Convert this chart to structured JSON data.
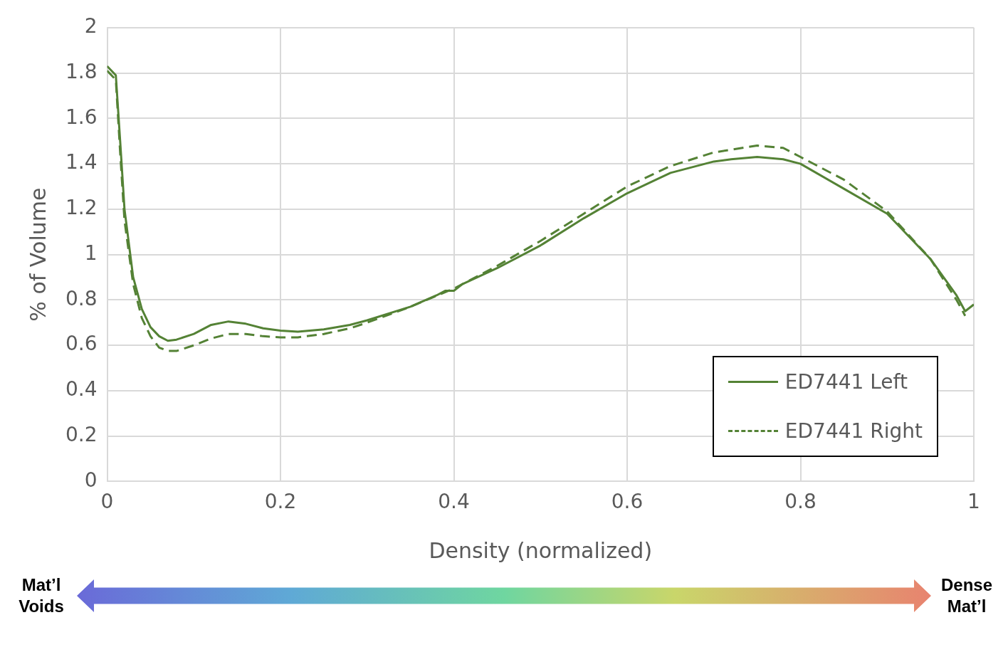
{
  "chart_data": {
    "type": "line",
    "xlabel": "Density (normalized)",
    "ylabel": "% of Volume",
    "xlim": [
      0,
      1
    ],
    "xticks": [
      0,
      0.2,
      0.4,
      0.6,
      0.8,
      1
    ],
    "ylim": [
      0,
      2
    ],
    "yticks": [
      0,
      0.2,
      0.4,
      0.6,
      0.8,
      1,
      1.2,
      1.4,
      1.6,
      1.8,
      2
    ],
    "grid": true,
    "legend": "bottom right",
    "marker": "none",
    "series": [
      {
        "name": "ED7441 Left",
        "color": "#548235",
        "line_style": "solid",
        "x": [
          0,
          0.01,
          0.015,
          0.02,
          0.03,
          0.04,
          0.05,
          0.06,
          0.07,
          0.08,
          0.1,
          0.12,
          0.14,
          0.16,
          0.18,
          0.2,
          0.22,
          0.25,
          0.28,
          0.3,
          0.35,
          0.38,
          0.39,
          0.4,
          0.41,
          0.45,
          0.5,
          0.55,
          0.6,
          0.65,
          0.7,
          0.72,
          0.75,
          0.78,
          0.8,
          0.85,
          0.9,
          0.95,
          0.98,
          0.99,
          1
        ],
        "values": [
          1.83,
          1.79,
          1.5,
          1.2,
          0.9,
          0.76,
          0.68,
          0.64,
          0.62,
          0.625,
          0.65,
          0.69,
          0.705,
          0.695,
          0.675,
          0.665,
          0.66,
          0.67,
          0.69,
          0.71,
          0.77,
          0.82,
          0.84,
          0.84,
          0.87,
          0.94,
          1.04,
          1.16,
          1.27,
          1.36,
          1.41,
          1.42,
          1.43,
          1.42,
          1.4,
          1.29,
          1.18,
          0.98,
          0.82,
          0.75,
          0.78
        ]
      },
      {
        "name": "ED7441 Right",
        "color": "#548235",
        "line_style": "dashed",
        "x": [
          0,
          0.01,
          0.015,
          0.02,
          0.03,
          0.04,
          0.05,
          0.06,
          0.07,
          0.08,
          0.1,
          0.12,
          0.14,
          0.16,
          0.18,
          0.2,
          0.22,
          0.25,
          0.28,
          0.3,
          0.35,
          0.4,
          0.45,
          0.5,
          0.55,
          0.6,
          0.65,
          0.7,
          0.75,
          0.78,
          0.8,
          0.85,
          0.9,
          0.95,
          0.98,
          0.99
        ],
        "values": [
          1.81,
          1.77,
          1.45,
          1.15,
          0.87,
          0.72,
          0.64,
          0.59,
          0.575,
          0.575,
          0.6,
          0.63,
          0.65,
          0.65,
          0.64,
          0.635,
          0.635,
          0.65,
          0.675,
          0.7,
          0.77,
          0.85,
          0.95,
          1.06,
          1.18,
          1.3,
          1.39,
          1.45,
          1.48,
          1.47,
          1.43,
          1.33,
          1.19,
          0.98,
          0.8,
          0.73
        ]
      }
    ],
    "annotations": [
      "Mat’l Voids",
      "Dense Mat’l"
    ]
  }
}
